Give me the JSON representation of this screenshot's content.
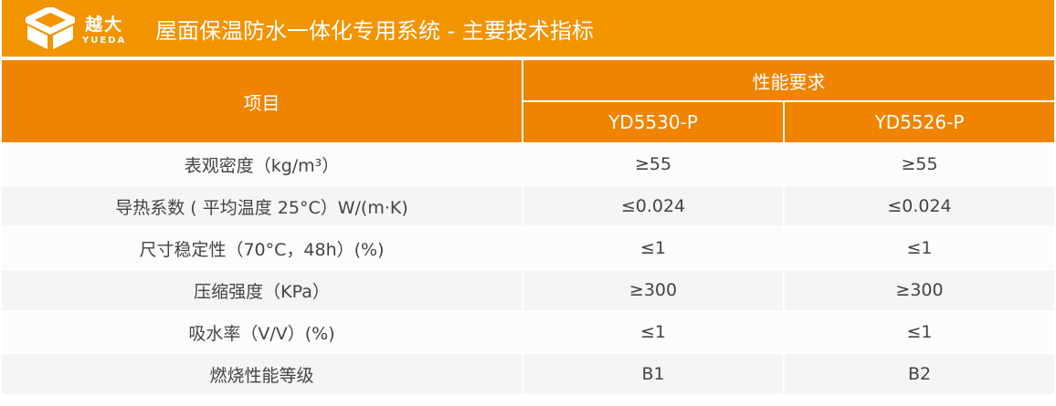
{
  "logo": {
    "cn": "越大",
    "en": "YUEDA"
  },
  "title": "屋面保温防水一体化专用系统 - 主要技术指标",
  "colors": {
    "title_bar": "#F29300",
    "header": "#F08300"
  },
  "table": {
    "item_header": "项目",
    "group_header": "性能要求",
    "columns": [
      "YD5530-P",
      "YD5526-P"
    ],
    "rows": [
      {
        "item": "表观密度（kg/m³）",
        "values": [
          "≥55",
          "≥55"
        ]
      },
      {
        "item": "导热系数 ( 平均温度 25°C）W/(m·K)",
        "values": [
          "≤0.024",
          "≤0.024"
        ]
      },
      {
        "item": "尺寸稳定性（70°C，48h）(%)",
        "values": [
          "≤1",
          "≤1"
        ]
      },
      {
        "item": "压缩强度（KPa）",
        "values": [
          "≥300",
          "≥300"
        ]
      },
      {
        "item": "吸水率（V/V）(%)",
        "values": [
          "≤1",
          "≤1"
        ]
      },
      {
        "item": "燃烧性能等级",
        "values": [
          "B1",
          "B2"
        ]
      }
    ]
  }
}
